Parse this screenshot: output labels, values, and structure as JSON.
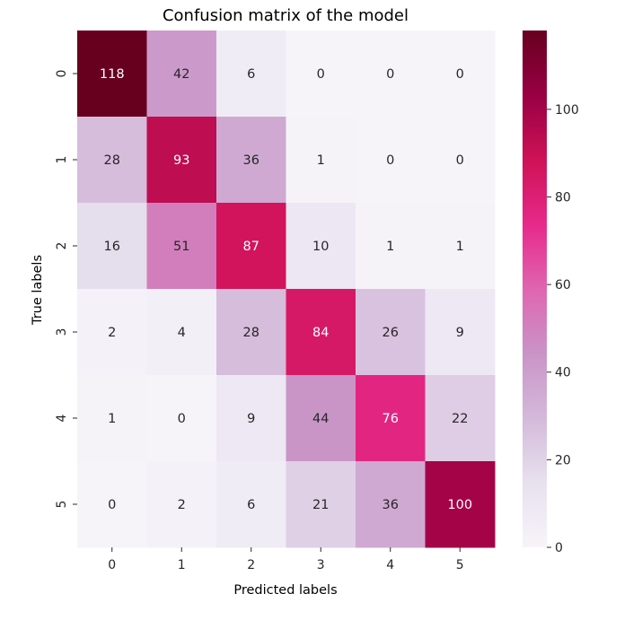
{
  "chart_data": {
    "type": "heatmap",
    "title": "Confusion matrix of the model",
    "xlabel": "Predicted labels",
    "ylabel": "True labels",
    "x_categories": [
      "0",
      "1",
      "2",
      "3",
      "4",
      "5"
    ],
    "y_categories": [
      "0",
      "1",
      "2",
      "3",
      "4",
      "5"
    ],
    "values": [
      [
        118,
        42,
        6,
        0,
        0,
        0
      ],
      [
        28,
        93,
        36,
        1,
        0,
        0
      ],
      [
        16,
        51,
        87,
        10,
        1,
        1
      ],
      [
        2,
        4,
        28,
        84,
        26,
        9
      ],
      [
        1,
        0,
        9,
        44,
        76,
        22
      ],
      [
        0,
        2,
        6,
        21,
        36,
        100
      ]
    ],
    "annotations": true,
    "colormap": "PuRd",
    "colormap_stops": [
      "#f7f4f9",
      "#e7e1ef",
      "#d4b9da",
      "#c994c7",
      "#df65b0",
      "#e7298a",
      "#ce1256",
      "#980043",
      "#67001f"
    ],
    "colorbar": {
      "vmin": 0,
      "vmax": 118,
      "ticks": [
        0,
        20,
        40,
        60,
        80,
        100
      ],
      "tick_labels": [
        "0",
        "20",
        "40",
        "60",
        "80",
        "100"
      ]
    },
    "annotation_colors": {
      "dark": "#262626",
      "light": "#ffffff"
    }
  }
}
